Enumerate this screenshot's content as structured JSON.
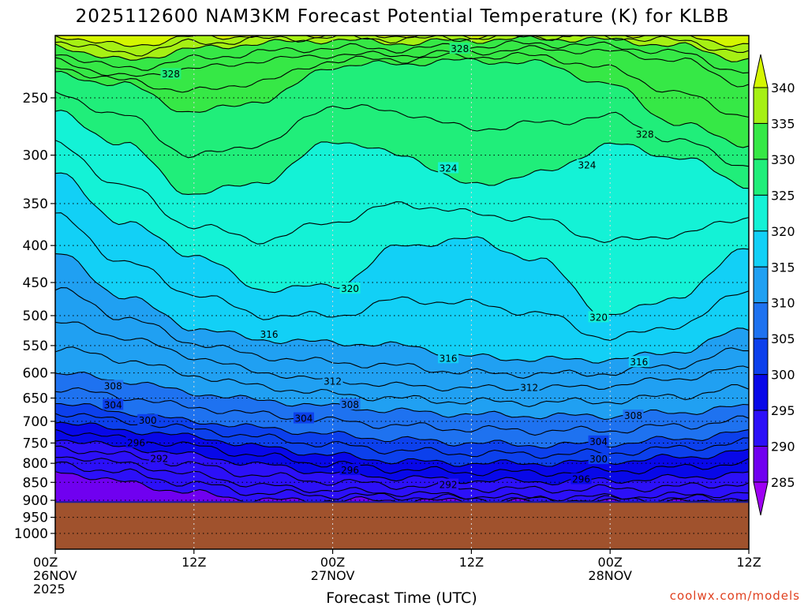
{
  "chart_data": {
    "type": "heatmap",
    "title": "2025112600 NAM3KM Forecast Potential Temperature (K) for KLBB",
    "xlabel": "Forecast Time (UTC)",
    "ylabel": "",
    "y_axis": "pressure (hPa), inverted log scale",
    "ylim": [
      1000,
      200
    ],
    "xlim_hours": [
      0,
      60
    ],
    "y_ticks": [
      250,
      300,
      350,
      400,
      450,
      500,
      550,
      600,
      650,
      700,
      750,
      800,
      850,
      900,
      950,
      1000
    ],
    "x_ticks": [
      {
        "hour": 0,
        "line1": "00Z",
        "line2": "26NOV",
        "line3": "2025"
      },
      {
        "hour": 12,
        "line1": "12Z",
        "line2": "",
        "line3": ""
      },
      {
        "hour": 24,
        "line1": "00Z",
        "line2": "27NOV",
        "line3": ""
      },
      {
        "hour": 36,
        "line1": "12Z",
        "line2": "",
        "line3": ""
      },
      {
        "hour": 48,
        "line1": "00Z",
        "line2": "28NOV",
        "line3": ""
      },
      {
        "hour": 60,
        "line1": "12Z",
        "line2": "",
        "line3": ""
      }
    ],
    "colorbar": {
      "levels": [
        285,
        290,
        295,
        300,
        305,
        310,
        315,
        320,
        325,
        330,
        335,
        340
      ],
      "colors": [
        "#9e00f4",
        "#7000f0",
        "#2c10f8",
        "#0808e8",
        "#0c40ec",
        "#1e72f0",
        "#20a0f2",
        "#12d0f6",
        "#14f2d6",
        "#20ee7a",
        "#36e846",
        "#a6f014",
        "#d4f600"
      ],
      "extend": "both"
    },
    "grid": true,
    "surface_pressure": 905,
    "surface_color": "#a0522d",
    "contour_interval": 2,
    "contour_labels": [
      {
        "value": "328",
        "hour": 35,
        "p": 214
      },
      {
        "value": "328",
        "hour": 10,
        "p": 232
      },
      {
        "value": "328",
        "hour": 51,
        "p": 281
      },
      {
        "value": "324",
        "hour": 34,
        "p": 313
      },
      {
        "value": "324",
        "hour": 46,
        "p": 310
      },
      {
        "value": "320",
        "hour": 25.5,
        "p": 459
      },
      {
        "value": "320",
        "hour": 47,
        "p": 503
      },
      {
        "value": "316",
        "hour": 18.5,
        "p": 531
      },
      {
        "value": "316",
        "hour": 34,
        "p": 573
      },
      {
        "value": "316",
        "hour": 50.5,
        "p": 580
      },
      {
        "value": "312",
        "hour": 24,
        "p": 617
      },
      {
        "value": "312",
        "hour": 41,
        "p": 629
      },
      {
        "value": "308",
        "hour": 5,
        "p": 626
      },
      {
        "value": "308",
        "hour": 25.5,
        "p": 664
      },
      {
        "value": "308",
        "hour": 50,
        "p": 688
      },
      {
        "value": "304",
        "hour": 5,
        "p": 665
      },
      {
        "value": "304",
        "hour": 21.5,
        "p": 694
      },
      {
        "value": "304",
        "hour": 47,
        "p": 747
      },
      {
        "value": "300",
        "hour": 8,
        "p": 698
      },
      {
        "value": "300",
        "hour": 47,
        "p": 790
      },
      {
        "value": "296",
        "hour": 7,
        "p": 750
      },
      {
        "value": "296",
        "hour": 25.5,
        "p": 818
      },
      {
        "value": "296",
        "hour": 45.5,
        "p": 842
      },
      {
        "value": "292",
        "hour": 9,
        "p": 789
      },
      {
        "value": "292",
        "hour": 34,
        "p": 857
      }
    ],
    "isotherm_profiles": {
      "hours": [
        0,
        6,
        12,
        18,
        24,
        30,
        36,
        42,
        48,
        54,
        60
      ],
      "levels": {
        "340": [
          205,
          212,
          206,
          205,
          204,
          205,
          205,
          204,
          204,
          205,
          212
        ],
        "336": [
          212,
          222,
          214,
          210,
          208,
          210,
          208,
          207,
          208,
          212,
          222
        ],
        "332": [
          222,
          234,
          228,
          222,
          218,
          218,
          216,
          214,
          216,
          222,
          240
        ],
        "328": [
          232,
          240,
          262,
          252,
          226,
          224,
          222,
          224,
          240,
          272,
          290
        ],
        "324": [
          262,
          290,
          340,
          326,
          286,
          300,
          330,
          318,
          290,
          302,
          330
        ],
        "320": [
          318,
          372,
          412,
          460,
          455,
          400,
          392,
          420,
          500,
          470,
          400
        ],
        "316": [
          410,
          470,
          520,
          540,
          545,
          550,
          570,
          575,
          575,
          560,
          520
        ],
        "312": [
          510,
          535,
          570,
          600,
          615,
          625,
          630,
          630,
          625,
          610,
          590
        ],
        "308": [
          600,
          615,
          640,
          655,
          668,
          678,
          685,
          688,
          688,
          680,
          668
        ],
        "304": [
          660,
          680,
          700,
          715,
          730,
          742,
          750,
          755,
          752,
          740,
          725
        ],
        "300": [
          700,
          720,
          735,
          760,
          780,
          795,
          800,
          800,
          795,
          785,
          770
        ],
        "296": [
          740,
          760,
          780,
          805,
          825,
          838,
          845,
          848,
          845,
          838,
          825
        ],
        "292": [
          780,
          800,
          830,
          860,
          872,
          880,
          888,
          892,
          890,
          886,
          880
        ],
        "288": [
          820,
          850,
          880,
          900,
          900,
          900,
          903,
          905,
          905,
          905,
          903
        ]
      }
    }
  },
  "credit": "coolwx.com/models"
}
